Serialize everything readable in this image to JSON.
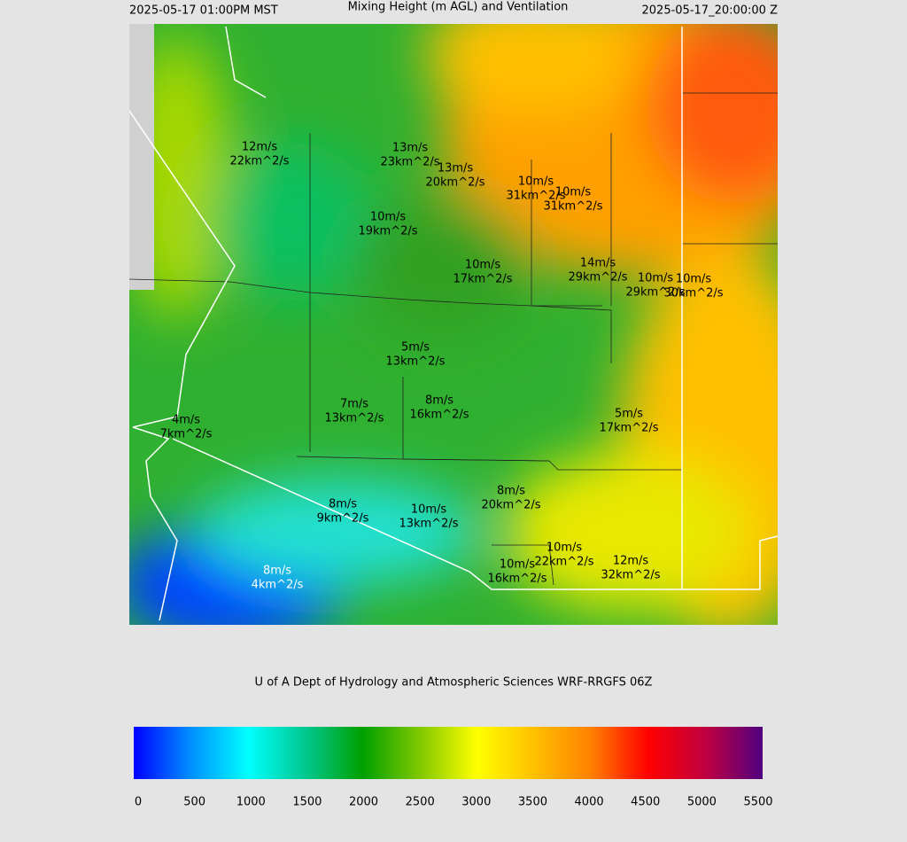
{
  "header": {
    "left": "2025-05-17 01:00PM MST",
    "title": "Mixing Height (m AGL) and Ventilation",
    "right": "2025-05-17_20:00:00 Z"
  },
  "map_labels": [
    {
      "wind": "12m/s",
      "ventilation": "22km^2/s"
    },
    {
      "wind": "13m/s",
      "ventilation": "23km^2/s"
    },
    {
      "wind": "13m/s",
      "ventilation": "20km^2/s"
    },
    {
      "wind": "10m/s",
      "ventilation": "31km^2/s"
    },
    {
      "wind": "10m/s",
      "ventilation": "31km^2/s"
    },
    {
      "wind": "10m/s",
      "ventilation": "19km^2/s"
    },
    {
      "wind": "10m/s",
      "ventilation": "17km^2/s"
    },
    {
      "wind": "14m/s",
      "ventilation": "29km^2/s"
    },
    {
      "wind": "10m/s",
      "ventilation": "29km^2/s"
    },
    {
      "wind": "10m/s",
      "ventilation": "30km^2/s"
    },
    {
      "wind": "5m/s",
      "ventilation": "13km^2/s"
    },
    {
      "wind": "8m/s",
      "ventilation": "16km^2/s"
    },
    {
      "wind": "7m/s",
      "ventilation": "13km^2/s"
    },
    {
      "wind": "4m/s",
      "ventilation": "7km^2/s"
    },
    {
      "wind": "5m/s",
      "ventilation": "17km^2/s"
    },
    {
      "wind": "8m/s",
      "ventilation": "20km^2/s"
    },
    {
      "wind": "8m/s",
      "ventilation": "9km^2/s"
    },
    {
      "wind": "10m/s",
      "ventilation": "13km^2/s"
    },
    {
      "wind": "10m/s",
      "ventilation": "22km^2/s"
    },
    {
      "wind": "12m/s",
      "ventilation": "32km^2/s"
    },
    {
      "wind": "10m/s",
      "ventilation": "16km^2/s"
    },
    {
      "wind": "8m/s",
      "ventilation": "4km^2/s"
    }
  ],
  "credit": "U of A Dept of Hydrology and Atmospheric Sciences WRF-RRGFS 06Z",
  "colorbar": {
    "ticks": [
      0,
      500,
      1000,
      1500,
      2000,
      2500,
      3000,
      3500,
      4000,
      4500,
      5000,
      5500
    ],
    "colors": [
      "#0000ff",
      "#0090ff",
      "#00ffff",
      "#00c890",
      "#00a000",
      "#80c800",
      "#ffff00",
      "#ffc000",
      "#ff8000",
      "#ff0000",
      "#c00040",
      "#500080"
    ]
  }
}
